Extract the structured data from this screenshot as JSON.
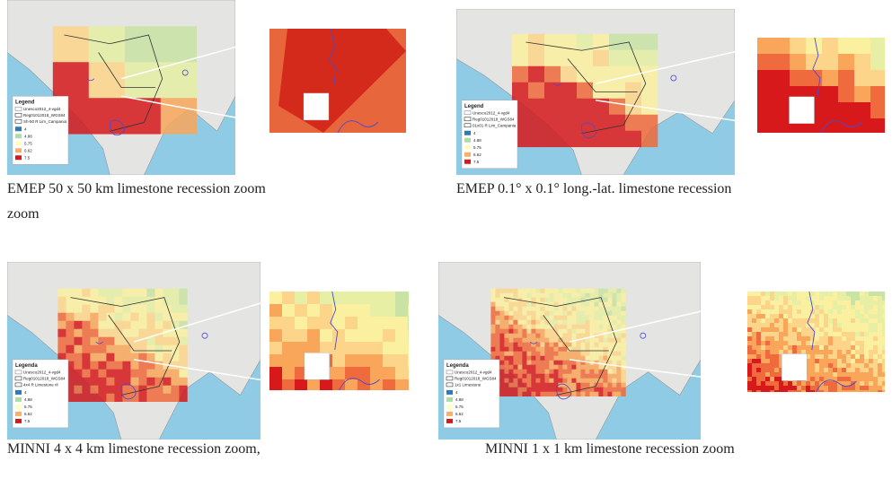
{
  "panels": [
    {
      "caption": [
        "EMEP 50 x 50 km limestone recession zoom",
        "zoom"
      ],
      "legend": {
        "title": "Legend",
        "layers": [
          "Unesco2012_4-vgd4",
          "Reg01012018_WGS84",
          "Sh-50 R Lim_Campania"
        ],
        "items": [
          "4",
          "4.88",
          "5.75",
          "6.62",
          "7.5"
        ]
      }
    },
    {
      "caption": [
        "EMEP 0.1° x 0.1° long.-lat. limestone recession"
      ],
      "legend": {
        "title": "Legend",
        "layers": [
          "Unesco2012_4-vgd4",
          "Reg01012018_WGS84",
          "01x01 R Lim_Campania"
        ],
        "items": [
          "4",
          "4.88",
          "5.75",
          "6.62",
          "7.5"
        ]
      }
    },
    {
      "caption": [
        "MINNI 4 x 4 km limestone recession zoom,"
      ],
      "legend": {
        "title": "Legenda",
        "layers": [
          "Unesco2012_4-vgd4",
          "Reg01012018_WGS84",
          "4x4 R Limestone ril"
        ],
        "items": [
          "4",
          "4.88",
          "5.75",
          "6.62",
          "7.5"
        ]
      }
    },
    {
      "caption": [
        "MINNI 1 x 1 km limestone recession zoom"
      ],
      "legend": {
        "title": "Legenda",
        "layers": [
          "Unesco2012_4-vgd4",
          "Reg01012018_WGS84",
          "1x1 Limestone"
        ],
        "items": [
          "4",
          "4.88",
          "5.75",
          "6.62",
          "7.5"
        ]
      }
    }
  ]
}
